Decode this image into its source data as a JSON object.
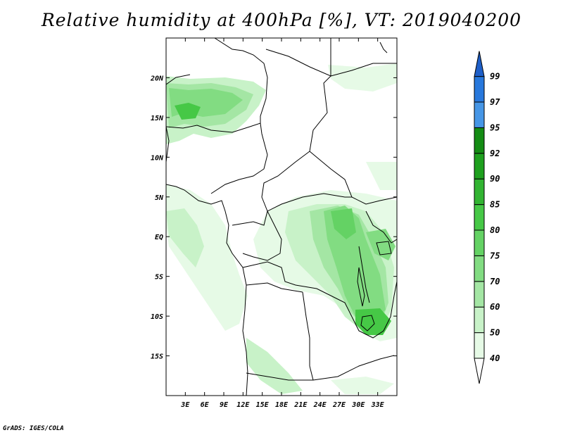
{
  "title": "Relative humidity at 400hPa [%], VT: 2019040200",
  "credit": "GrADS: IGES/COLA",
  "map": {
    "lon_range": [
      0,
      36
    ],
    "lat_range": [
      -20,
      25
    ],
    "x_ticks": [
      "3E",
      "6E",
      "9E",
      "12E",
      "15E",
      "18E",
      "21E",
      "24E",
      "27E",
      "30E",
      "33E"
    ],
    "y_ticks": [
      "20N",
      "15N",
      "10N",
      "5N",
      "EQ",
      "5S",
      "10S",
      "15S"
    ]
  },
  "colorbar": {
    "levels": [
      "40",
      "50",
      "60",
      "70",
      "75",
      "80",
      "85",
      "90",
      "92",
      "95",
      "97",
      "99"
    ],
    "colors": [
      "#e6fae6",
      "#c8f2c8",
      "#a4e6a4",
      "#82dc82",
      "#64d264",
      "#46c846",
      "#32b432",
      "#1ea01e",
      "#148c14",
      "#4696e6",
      "#2878dc",
      "#1e5fc8"
    ]
  }
}
